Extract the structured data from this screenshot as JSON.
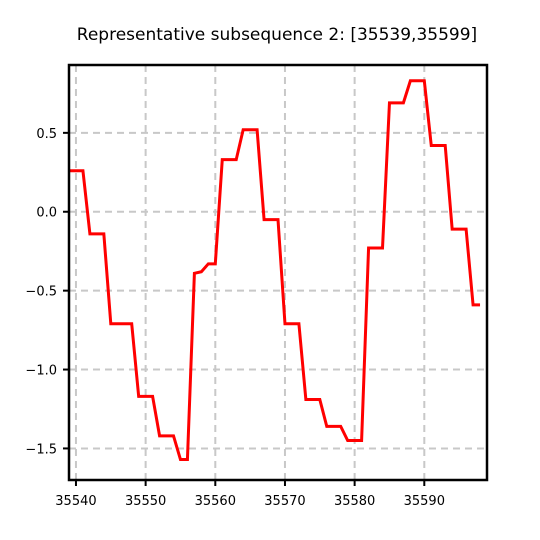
{
  "chart_data": {
    "type": "line",
    "title": "Representative subsequence 2: [35539,35599]",
    "xlabel": "",
    "ylabel": "",
    "xlim": [
      35539,
      35599
    ],
    "ylim": [
      -1.7,
      0.93
    ],
    "xticks": [
      35540,
      35550,
      35560,
      35570,
      35580,
      35590
    ],
    "yticks": [
      0.5,
      0.0,
      -0.5,
      -1.0,
      -1.5
    ],
    "ytick_labels": [
      "0.5",
      "0.0",
      "−0.5",
      "−1.0",
      "−1.5"
    ],
    "grid": true,
    "series": [
      {
        "color": "#ff0000",
        "x": [
          35539,
          35540,
          35541,
          35542,
          35543,
          35544,
          35545,
          35546,
          35547,
          35548,
          35549,
          35550,
          35551,
          35552,
          35553,
          35554,
          35555,
          35556,
          35557,
          35558,
          35559,
          35560,
          35561,
          35562,
          35563,
          35564,
          35565,
          35566,
          35567,
          35568,
          35569,
          35570,
          35571,
          35572,
          35573,
          35574,
          35575,
          35576,
          35577,
          35578,
          35579,
          35580,
          35581,
          35582,
          35583,
          35584,
          35585,
          35586,
          35587,
          35588,
          35589,
          35590,
          35591,
          35592,
          35593,
          35594,
          35595,
          35596,
          35597,
          35598
        ],
        "values": [
          0.26,
          0.26,
          0.26,
          -0.14,
          -0.14,
          -0.14,
          -0.71,
          -0.71,
          -0.71,
          -0.71,
          -1.17,
          -1.17,
          -1.17,
          -1.42,
          -1.42,
          -1.42,
          -1.57,
          -1.57,
          -0.39,
          -0.38,
          -0.33,
          -0.33,
          0.33,
          0.33,
          0.33,
          0.52,
          0.52,
          0.52,
          -0.05,
          -0.05,
          -0.05,
          -0.71,
          -0.71,
          -0.71,
          -1.19,
          -1.19,
          -1.19,
          -1.36,
          -1.36,
          -1.36,
          -1.45,
          -1.45,
          -1.45,
          -0.23,
          -0.23,
          -0.23,
          0.69,
          0.69,
          0.69,
          0.83,
          0.83,
          0.83,
          0.42,
          0.42,
          0.42,
          -0.11,
          -0.11,
          -0.11,
          -0.59,
          -0.59
        ]
      }
    ]
  },
  "colors": {
    "line": "#ff0000",
    "grid": "#c8c8c8",
    "axes": "#000000"
  }
}
